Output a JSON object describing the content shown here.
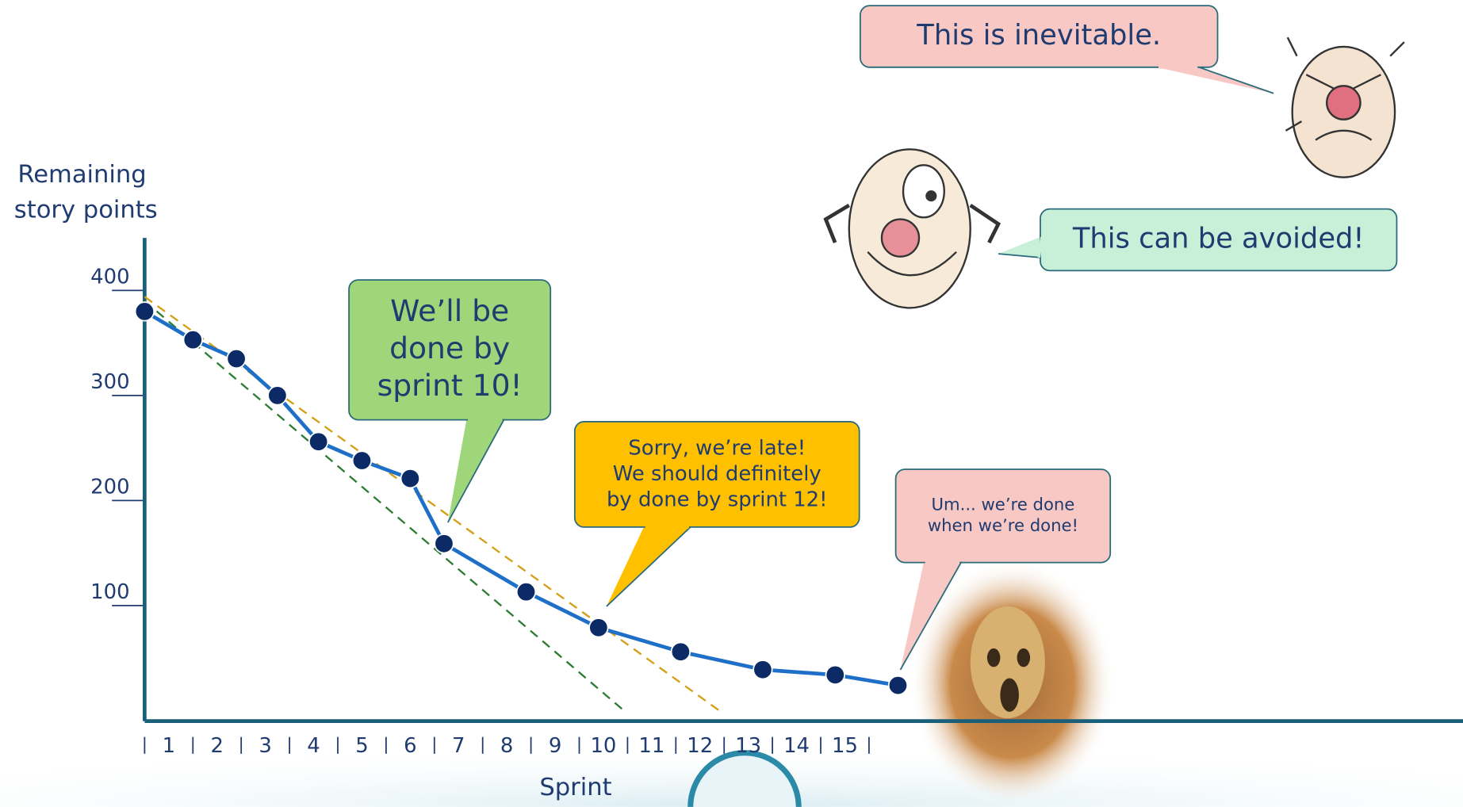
{
  "chart_data": {
    "type": "line",
    "y_label": [
      "Remaining",
      "story points"
    ],
    "x_label": "Sprint",
    "xlim": [
      0,
      27.3
    ],
    "ylim": [
      -10,
      450
    ],
    "xticks": [
      {
        "value": 0.5,
        "label": "1"
      },
      {
        "value": 1.5,
        "label": "2"
      },
      {
        "value": 2.5,
        "label": "3"
      },
      {
        "value": 3.5,
        "label": "4"
      },
      {
        "value": 4.5,
        "label": "5"
      },
      {
        "value": 5.5,
        "label": "6"
      },
      {
        "value": 6.5,
        "label": "7"
      },
      {
        "value": 7.5,
        "label": "8"
      },
      {
        "value": 8.5,
        "label": "9"
      },
      {
        "value": 9.5,
        "label": "10"
      },
      {
        "value": 10.5,
        "label": "11"
      },
      {
        "value": 11.5,
        "label": "12"
      },
      {
        "value": 12.5,
        "label": "13"
      },
      {
        "value": 13.5,
        "label": "14"
      },
      {
        "value": 14.5,
        "label": "15"
      }
    ],
    "yticks": [
      100,
      200,
      300,
      400
    ],
    "series": [
      {
        "color": "#1e6fc8",
        "x": [
          0,
          1,
          1.9,
          2.75,
          3.6,
          4.5,
          5.5,
          6.2,
          7.9,
          9.4,
          11.1,
          12.8,
          14.3,
          15.6
        ],
        "values": [
          380,
          353,
          335,
          300,
          256,
          238,
          221,
          159,
          113,
          79,
          56,
          39,
          34,
          24
        ]
      }
    ],
    "trend_lines": [
      {
        "color": "#2e7d32",
        "x": [
          0,
          9.9
        ],
        "values": [
          390,
          1
        ]
      },
      {
        "color": "#d4a017",
        "x": [
          0,
          11.9
        ],
        "values": [
          394,
          0
        ]
      }
    ],
    "callouts": [
      {
        "lines": [
          "This is inevitable."
        ]
      },
      {
        "lines": [
          "This can be avoided!"
        ]
      },
      {
        "lines": [
          "We’ll be",
          "done by",
          "sprint 10!"
        ]
      },
      {
        "lines": [
          "Sorry, we’re late!",
          "We should definitely",
          "by done by sprint 12!"
        ]
      },
      {
        "lines": [
          "Um... we’re done",
          "when we’re done!"
        ]
      }
    ]
  }
}
